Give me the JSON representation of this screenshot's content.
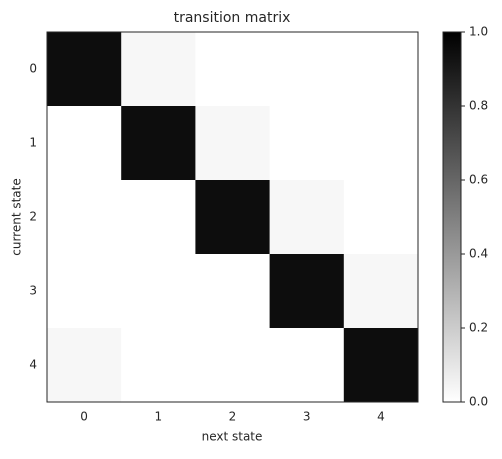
{
  "chart_data": {
    "type": "heatmap",
    "title": "transition matrix",
    "xlabel": "next state",
    "ylabel": "current state",
    "x_categories": [
      "0",
      "1",
      "2",
      "3",
      "4"
    ],
    "y_categories": [
      "0",
      "1",
      "2",
      "3",
      "4"
    ],
    "values": [
      [
        0.95,
        0.03,
        0,
        0,
        0
      ],
      [
        0,
        0.95,
        0.03,
        0,
        0
      ],
      [
        0,
        0,
        0.95,
        0.03,
        0
      ],
      [
        0,
        0,
        0,
        0.95,
        0.03
      ],
      [
        0.03,
        0,
        0,
        0,
        0.95
      ]
    ],
    "colormap": [
      "#ffffff",
      "#000000"
    ],
    "clim": [
      0,
      1
    ],
    "cticks": [
      {
        "value": 0,
        "label": "0.0"
      },
      0.2,
      0.4,
      0.6,
      0.8,
      {
        "value": 1,
        "label": "1.0"
      }
    ]
  }
}
